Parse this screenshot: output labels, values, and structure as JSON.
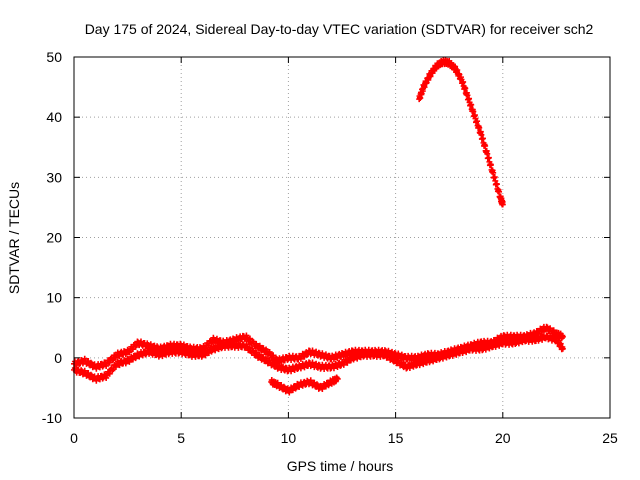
{
  "chart_data": {
    "type": "scatter",
    "title": "Day 175 of 2024, Sidereal Day-to-day VTEC variation (SDTVAR) for receiver sch2",
    "xlabel": "GPS time / hours",
    "ylabel": "SDTVAR / TECUs",
    "xlim": [
      0,
      25
    ],
    "ylim": [
      -10,
      50
    ],
    "xticks": [
      0,
      5,
      10,
      15,
      20,
      25
    ],
    "yticks": [
      -10,
      0,
      10,
      20,
      30,
      40,
      50
    ],
    "xtick_labels": [
      "0",
      "5",
      "10",
      "15",
      "20",
      "25"
    ],
    "ytick_labels": [
      "-10",
      "0",
      "10",
      "20",
      "30",
      "40",
      "50"
    ],
    "grid": true,
    "series_color": "#ff0000",
    "series": [
      {
        "name": "main-band-upper",
        "x": [
          0,
          0.5,
          1,
          1.5,
          2,
          2.5,
          3,
          3.5,
          4,
          4.5,
          5,
          5.5,
          6,
          6.5,
          7,
          7.5,
          8,
          8.5,
          9,
          9.5,
          10,
          10.5,
          11,
          11.5,
          12,
          12.5,
          13,
          13.5,
          14,
          14.5,
          15,
          15.5,
          16,
          16.5,
          17,
          17.5,
          18,
          18.5,
          19,
          19.5,
          20,
          20.5,
          21,
          21.5,
          22,
          22.5,
          22.8
        ],
        "values": [
          -1,
          -0.5,
          -1.5,
          -1,
          0.5,
          1,
          2.5,
          2,
          1.5,
          2,
          2,
          1.5,
          1.5,
          3,
          2.5,
          3,
          3.5,
          2,
          1,
          -0.5,
          0,
          0,
          1,
          0.5,
          0,
          0.5,
          1,
          1,
          1,
          1,
          0.5,
          0,
          0,
          0.5,
          0.5,
          1,
          1.5,
          2,
          2.5,
          2.5,
          3.5,
          3.5,
          3.5,
          4,
          5,
          4,
          3.5
        ]
      },
      {
        "name": "main-band-lower",
        "x": [
          0,
          0.5,
          1,
          1.5,
          2,
          2.5,
          3,
          3.5,
          4,
          4.5,
          5,
          5.5,
          6,
          6.5,
          7,
          7.5,
          8,
          8.5,
          9,
          9.5,
          10,
          10.5,
          11,
          11.5,
          12,
          12.5,
          13,
          13.5,
          14,
          14.5,
          15,
          15.5,
          16,
          16.5,
          17,
          17.5,
          18,
          18.5,
          19,
          19.5,
          20,
          20.5,
          21,
          21.5,
          22,
          22.5,
          22.8
        ],
        "values": [
          -2,
          -2.5,
          -3.5,
          -3,
          -1,
          -0.5,
          0.5,
          1,
          0.5,
          1,
          1,
          0.5,
          0.5,
          1.5,
          2,
          2,
          2,
          0.5,
          -0.5,
          -1.5,
          -2,
          -1.5,
          -1,
          -1.5,
          -1.5,
          -1,
          0,
          0.5,
          0.5,
          0.5,
          -0.5,
          -1.5,
          -1,
          -0.5,
          0,
          0.5,
          1,
          1.5,
          1.5,
          2,
          2.5,
          2.5,
          3,
          3,
          3.5,
          3,
          1.5
        ]
      },
      {
        "name": "dip-segment",
        "x": [
          9.2,
          9.5,
          10,
          10.5,
          11,
          11.5,
          12,
          12.3
        ],
        "values": [
          -4,
          -4.5,
          -5.5,
          -4.5,
          -4,
          -5,
          -4,
          -3.5
        ]
      },
      {
        "name": "high-arc",
        "x": [
          16.1,
          16.3,
          16.6,
          16.9,
          17.2,
          17.5,
          17.8,
          18.1,
          18.4,
          18.7,
          19,
          19.3,
          19.6,
          19.9,
          20
        ],
        "values": [
          43,
          45,
          47,
          48.5,
          49.2,
          49,
          48,
          46,
          43,
          40,
          37,
          33.5,
          30,
          26.5,
          25.5
        ]
      }
    ]
  }
}
